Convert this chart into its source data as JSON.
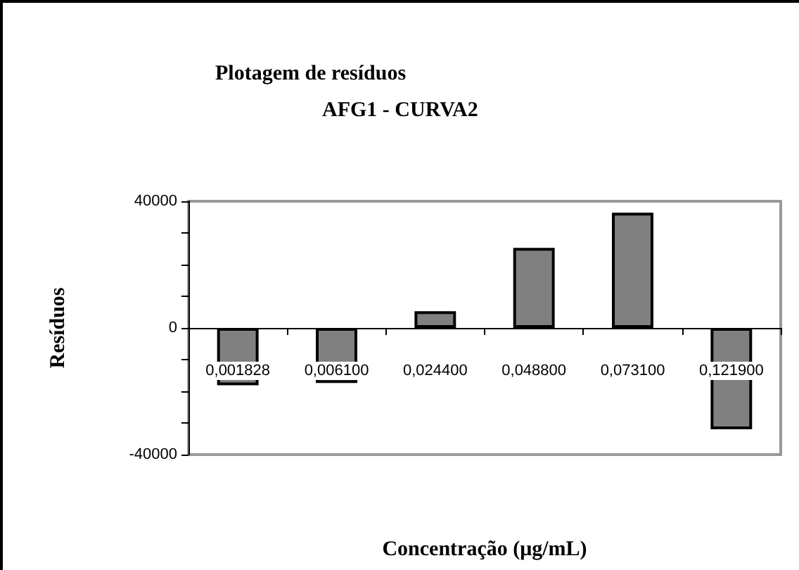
{
  "chart_data": {
    "type": "bar",
    "title": "Plotagem de resíduos",
    "subtitle": "AFG1 - CURVA2",
    "xlabel": "Concentração (μg/mL)",
    "ylabel": "Resíduos",
    "categories": [
      "0,001828",
      "0,006100",
      "0,024400",
      "0,048800",
      "0,073100",
      "0,121900"
    ],
    "values": [
      -18100,
      -17400,
      5300,
      25300,
      36400,
      -32000
    ],
    "color": "#808080",
    "ylim": [
      -40000,
      40000
    ],
    "yticks": [
      -40000,
      {
        "value": -30000,
        "label": null
      },
      {
        "value": -20000,
        "label": null
      },
      {
        "value": -10000,
        "label": null
      },
      0,
      {
        "value": 10000,
        "label": null
      },
      {
        "value": 20000,
        "label": null
      },
      {
        "value": 30000,
        "label": null
      },
      40000
    ],
    "grid": false
  }
}
